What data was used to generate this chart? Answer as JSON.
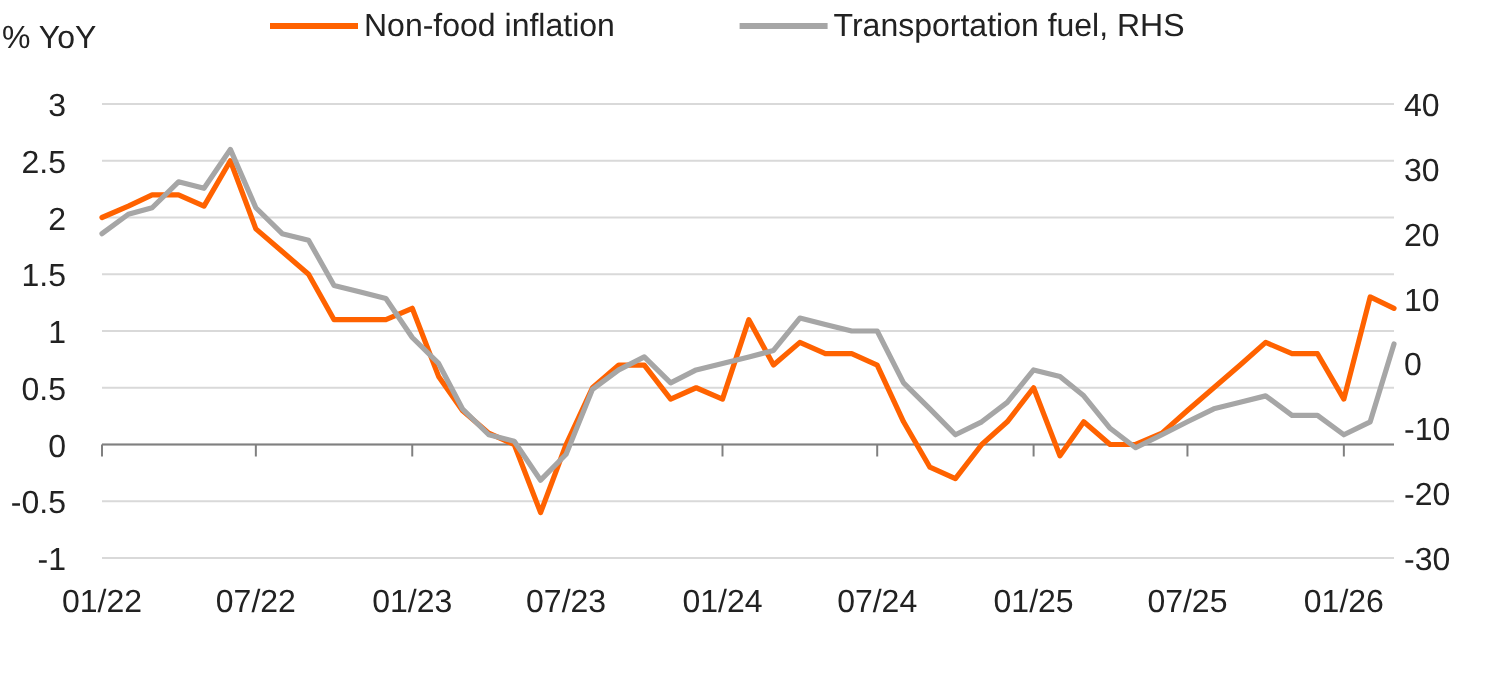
{
  "chart_data": {
    "type": "line",
    "ylabel": "% YoY",
    "x": [
      "2022-01",
      "2022-02",
      "2022-03",
      "2022-04",
      "2022-05",
      "2022-06",
      "2022-07",
      "2022-08",
      "2022-09",
      "2022-10",
      "2022-11",
      "2022-12",
      "2023-01",
      "2023-02",
      "2023-03",
      "2023-04",
      "2023-05",
      "2023-06",
      "2023-07",
      "2023-08",
      "2023-09",
      "2023-10",
      "2023-11",
      "2023-12",
      "2024-01",
      "2024-02",
      "2024-03",
      "2024-04",
      "2024-05",
      "2024-06",
      "2024-07",
      "2024-08",
      "2024-09",
      "2024-10",
      "2024-11",
      "2024-12",
      "2025-01",
      "2025-02",
      "2025-03",
      "2025-04",
      "2025-05",
      "2025-06",
      "2025-07",
      "2025-08",
      "2025-09",
      "2025-10",
      "2025-11",
      "2025-12",
      "2026-01",
      "2026-02",
      "2026-03"
    ],
    "series": [
      {
        "name": "Non-food inflation",
        "color": "#ff6200",
        "values": [
          2.0,
          2.1,
          2.2,
          2.2,
          2.1,
          2.5,
          1.9,
          1.7,
          1.5,
          1.1,
          1.1,
          1.1,
          1.2,
          0.6,
          0.3,
          0.1,
          0.0,
          -0.6,
          0.0,
          0.5,
          0.7,
          0.7,
          0.4,
          0.5,
          0.4,
          1.1,
          0.7,
          0.9,
          0.8,
          0.8,
          0.7,
          0.2,
          -0.2,
          -0.3,
          0.0,
          0.2,
          0.5,
          -0.1,
          0.2,
          0.0,
          0.0,
          0.1,
          0.3,
          0.5,
          0.7,
          0.9,
          0.8,
          0.8,
          0.4,
          1.3,
          1.2
        ]
      },
      {
        "name": "Transportation fuel, RHS",
        "color": "#a6a6a6",
        "axis": "y2",
        "values": [
          20,
          23,
          24,
          28,
          27,
          33,
          24,
          20,
          19,
          12,
          11,
          10,
          4,
          0,
          -7,
          -11,
          -12,
          -18,
          -14,
          -4,
          -1,
          1,
          -3,
          -1,
          0,
          1,
          2,
          7,
          6,
          5,
          5,
          -3,
          -7,
          -11,
          -9,
          -6,
          -1,
          -2,
          -5,
          -10,
          -13,
          -11,
          -9,
          -7,
          -6,
          -5,
          -8,
          -8,
          -11,
          -9,
          3
        ]
      }
    ],
    "xlim": [
      "2022-01",
      "2026-03"
    ],
    "xticks": [
      {
        "value": "2022-01",
        "label": "01/22"
      },
      {
        "value": "2022-07",
        "label": "07/22"
      },
      {
        "value": "2023-01",
        "label": "01/23"
      },
      {
        "value": "2023-07",
        "label": "07/23"
      },
      {
        "value": "2024-01",
        "label": "01/24"
      },
      {
        "value": "2024-07",
        "label": "07/24"
      },
      {
        "value": "2025-01",
        "label": "01/25"
      },
      {
        "value": "2025-07",
        "label": "07/25"
      },
      {
        "value": "2026-01",
        "label": "01/26"
      }
    ],
    "ylim": [
      -1,
      3
    ],
    "yticks": [
      -1,
      -0.5,
      0,
      0.5,
      1,
      1.5,
      2,
      2.5,
      3
    ],
    "y2lim": [
      -30,
      40
    ],
    "y2ticks": [
      -30,
      -20,
      -10,
      0,
      10,
      20,
      30,
      40
    ],
    "grid": "y",
    "legend": "top",
    "marker": "none",
    "line_style": "solid"
  }
}
